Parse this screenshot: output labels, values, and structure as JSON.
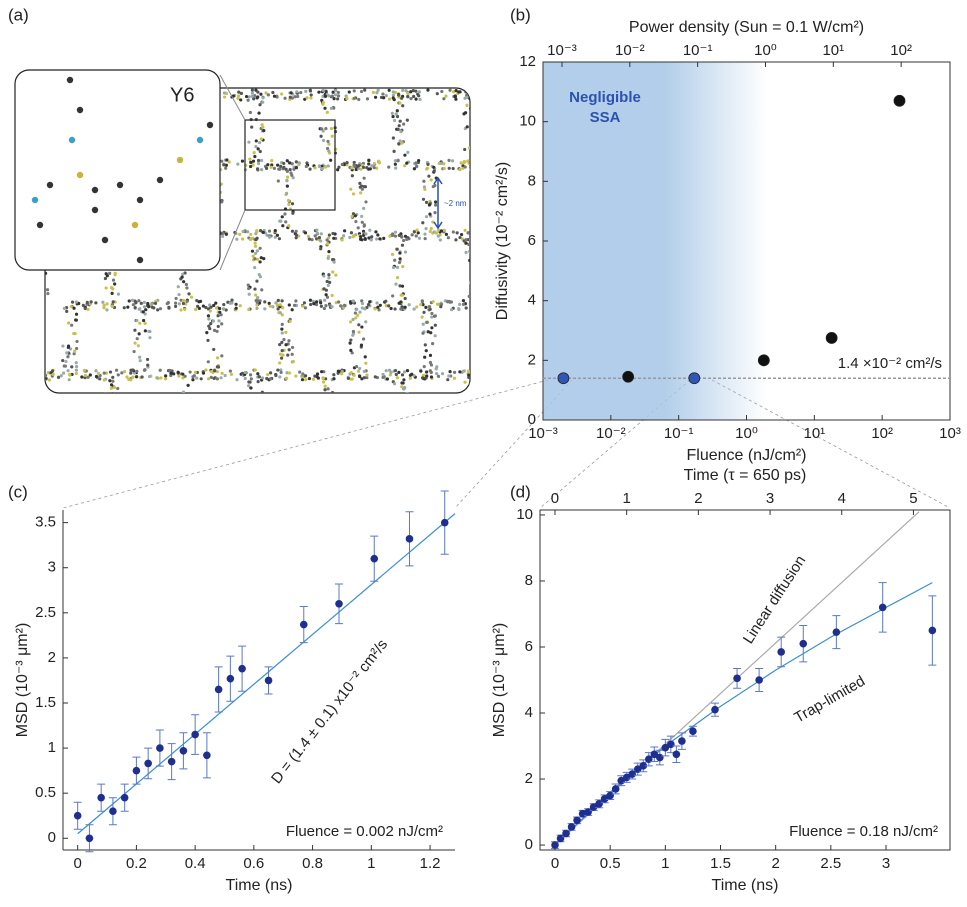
{
  "panel_labels": [
    "(a)",
    "(b)",
    "(c)",
    "(d)"
  ],
  "panel_a": {
    "molecule": "Y6",
    "scale": "~2 nm"
  },
  "chart_data": [
    {
      "type": "scatter",
      "xlabel": "Fluence (nJ/cm²)",
      "ylabel": "Diffusivity (10⁻² cm²/s)",
      "x2label": "Power density (Sun = 0.1 W/cm²)",
      "xscale": "log",
      "xlim": [
        0.001,
        1000
      ],
      "ylim": [
        0,
        12
      ],
      "xticks": [
        {
          "value": 0.001,
          "label": "10⁻³"
        },
        {
          "value": 0.01,
          "label": "10⁻²"
        },
        {
          "value": 0.1,
          "label": "10⁻¹"
        },
        {
          "value": 1,
          "label": "10⁰"
        },
        {
          "value": 10,
          "label": "10¹"
        },
        {
          "value": 100,
          "label": "10²"
        },
        {
          "value": 1000,
          "label": "10³"
        }
      ],
      "yticks": [
        0,
        2,
        4,
        6,
        8,
        10,
        12
      ],
      "x2scale": "log",
      "x2lim": [
        0.000525,
        525
      ],
      "x2ticks": [
        {
          "value": 0.001,
          "label": "10⁻³"
        },
        {
          "value": 0.01,
          "label": "10⁻²"
        },
        {
          "value": 0.1,
          "label": "10⁻¹"
        },
        {
          "value": 1,
          "label": "10⁰"
        },
        {
          "value": 10,
          "label": "10¹"
        },
        {
          "value": 100,
          "label": "10²"
        }
      ],
      "series": [
        {
          "x": [
            0.002,
            0.018,
            0.17,
            1.8,
            18,
            180
          ],
          "values": [
            1.4,
            1.45,
            1.4,
            2.0,
            2.75,
            10.7
          ],
          "point_colors": [
            "#2f55b5",
            "#111111",
            "#2f55b5",
            "#111111",
            "#111111",
            "#111111"
          ]
        }
      ],
      "reference": {
        "value": 1.4,
        "label": "1.4 ×10⁻² cm²/s",
        "color": "#999999"
      },
      "shaded_region": {
        "x": [
          0.001,
          2
        ],
        "label": [
          "Negligible",
          "SSA"
        ],
        "color": "#a6c6e6"
      }
    },
    {
      "type": "scatter",
      "xlabel": "Time (ns)",
      "ylabel": "MSD (10⁻³ μm²)",
      "xlim": [
        -0.05,
        1.285
      ],
      "ylim": [
        -0.13,
        3.64
      ],
      "xticks": [
        0,
        0.2,
        0.4,
        0.6,
        0.8,
        1,
        1.2
      ],
      "yticks": [
        0,
        0.5,
        1,
        1.5,
        2,
        2.5,
        3,
        3.5
      ],
      "series": [
        {
          "color": "#1f2f8f",
          "x": [
            0,
            0.04,
            0.08,
            0.12,
            0.16,
            0.2,
            0.24,
            0.28,
            0.32,
            0.36,
            0.4,
            0.44,
            0.48,
            0.52,
            0.56,
            0.65,
            0.77,
            0.89,
            1.01,
            1.13,
            1.25
          ],
          "values": [
            0.25,
            0,
            0.45,
            0.3,
            0.45,
            0.75,
            0.83,
            1.0,
            0.85,
            0.97,
            1.15,
            0.92,
            1.65,
            1.77,
            1.88,
            1.75,
            2.37,
            2.6,
            3.1,
            3.32,
            3.5
          ],
          "errors": [
            0.15,
            0.15,
            0.15,
            0.15,
            0.15,
            0.15,
            0.17,
            0.2,
            0.2,
            0.2,
            0.22,
            0.25,
            0.25,
            0.25,
            0.25,
            0.15,
            0.2,
            0.22,
            0.25,
            0.3,
            0.35
          ]
        }
      ],
      "lines": [
        {
          "x": [
            0,
            1.285
          ],
          "values": [
            0.05,
            3.6
          ],
          "color": "#3a8fd6"
        }
      ],
      "annotation": "D = (1.4 ± 0.1) x10⁻² cm²/s",
      "note": "Fluence = 0.002 nJ/cm²"
    },
    {
      "type": "scatter",
      "xlabel": "Time (ns)",
      "ylabel": "MSD (10⁻³ μm²)",
      "x2label": "Time (τ = 650 ps)",
      "xlim": [
        -0.136,
        3.58
      ],
      "ylim": [
        -0.15,
        10.15
      ],
      "xticks": [
        0,
        0.5,
        1,
        1.5,
        2,
        2.5,
        3
      ],
      "yticks": [
        0,
        2,
        4,
        6,
        8,
        10
      ],
      "x2lim": [
        -0.209,
        5.51
      ],
      "x2ticks": [
        0,
        1,
        2,
        3,
        4,
        5
      ],
      "series": [
        {
          "color": "#1f2f8f",
          "x": [
            0,
            0.05,
            0.1,
            0.15,
            0.2,
            0.25,
            0.3,
            0.35,
            0.4,
            0.45,
            0.5,
            0.55,
            0.6,
            0.65,
            0.7,
            0.75,
            0.8,
            0.85,
            0.9,
            0.95,
            1.0,
            1.05,
            1.1,
            1.15,
            1.25,
            1.45,
            1.65,
            1.85,
            2.05,
            2.25,
            2.55,
            2.97,
            3.42
          ],
          "values": [
            0,
            0.2,
            0.35,
            0.55,
            0.75,
            0.95,
            1.0,
            1.15,
            1.25,
            1.4,
            1.5,
            1.7,
            1.95,
            2.05,
            2.15,
            2.3,
            2.4,
            2.6,
            2.75,
            2.65,
            2.95,
            3.05,
            2.75,
            3.15,
            3.45,
            4.1,
            5.05,
            5.0,
            5.85,
            6.1,
            6.45,
            7.2,
            6.5
          ],
          "errors": [
            0.1,
            0.1,
            0.1,
            0.1,
            0.1,
            0.1,
            0.1,
            0.1,
            0.12,
            0.12,
            0.12,
            0.15,
            0.15,
            0.15,
            0.15,
            0.18,
            0.18,
            0.2,
            0.22,
            0.22,
            0.25,
            0.25,
            0.25,
            0.25,
            0.15,
            0.2,
            0.3,
            0.35,
            0.45,
            0.55,
            0.5,
            0.75,
            1.05
          ]
        }
      ],
      "lines": [
        {
          "name": "Linear diffusion",
          "x": [
            0,
            3.3
          ],
          "values": [
            0,
            10.1
          ],
          "color": "#aaaaaa"
        },
        {
          "name": "Trap-limited",
          "x": [
            0,
            0.5,
            1,
            1.5,
            2,
            2.5,
            3,
            3.42
          ],
          "values": [
            0,
            1.6,
            3.0,
            4.2,
            5.3,
            6.3,
            7.2,
            7.95
          ],
          "color": "#3a8fd6"
        }
      ],
      "note": "Fluence = 0.18 nJ/cm²"
    }
  ]
}
